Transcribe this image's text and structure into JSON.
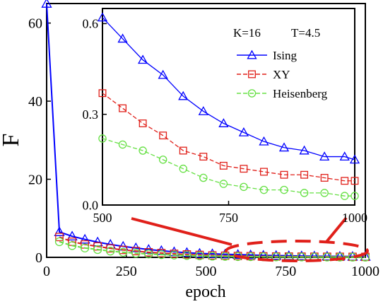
{
  "chart_data": [
    {
      "type": "line",
      "role": "main",
      "xlabel": "epoch",
      "ylabel": "F",
      "xlim": [
        0,
        1000
      ],
      "ylim": [
        0,
        65
      ],
      "xticks": [
        0,
        250,
        500,
        750,
        1000
      ],
      "xtick_labels": [
        "0",
        "250",
        "500",
        "750",
        "1000"
      ],
      "yticks": [
        0,
        20,
        40,
        60
      ],
      "ytick_labels": [
        "0",
        "20",
        "40",
        "60"
      ],
      "grid": false,
      "series": [
        {
          "name": "Ising",
          "color": "#0000ff",
          "marker": "triangle",
          "x": [
            0,
            40,
            80,
            120,
            160,
            200,
            240,
            280,
            320,
            360,
            400,
            440,
            480,
            520,
            560,
            600,
            640,
            680,
            720,
            760,
            800,
            840,
            880,
            920,
            960,
            1000
          ],
          "y": [
            65,
            6.5,
            5.4,
            4.6,
            3.9,
            3.3,
            2.8,
            2.4,
            2.0,
            1.7,
            1.4,
            1.2,
            1.0,
            0.9,
            0.8,
            0.7,
            0.6,
            0.5,
            0.45,
            0.4,
            0.35,
            0.3,
            0.27,
            0.24,
            0.22,
            0.2
          ]
        },
        {
          "name": "XY",
          "color": "#e0201a",
          "marker": "square",
          "x": [
            40,
            80,
            120,
            160,
            200,
            240,
            280,
            320,
            360,
            400,
            440,
            480,
            520,
            560,
            600,
            640,
            680,
            720,
            760,
            800,
            840,
            880,
            920,
            960,
            1000
          ],
          "y": [
            5.2,
            4.0,
            3.3,
            2.8,
            2.3,
            1.9,
            1.6,
            1.3,
            1.1,
            0.9,
            0.75,
            0.62,
            0.5,
            0.42,
            0.35,
            0.3,
            0.26,
            0.22,
            0.2,
            0.18,
            0.16,
            0.15,
            0.14,
            0.13,
            0.12
          ]
        },
        {
          "name": "Heisenberg",
          "color": "#66e044",
          "marker": "circle",
          "x": [
            40,
            80,
            120,
            160,
            200,
            240,
            280,
            320,
            360,
            400,
            440,
            480,
            520,
            560,
            600,
            640,
            680,
            720,
            760,
            800,
            840,
            880,
            920,
            960,
            1000
          ],
          "y": [
            4.0,
            3.0,
            2.4,
            2.0,
            1.6,
            1.3,
            1.05,
            0.85,
            0.7,
            0.58,
            0.47,
            0.38,
            0.3,
            0.25,
            0.2,
            0.17,
            0.14,
            0.12,
            0.1,
            0.09,
            0.08,
            0.07,
            0.06,
            0.05,
            0.05
          ]
        }
      ]
    },
    {
      "type": "line",
      "role": "inset",
      "xlim": [
        500,
        1000
      ],
      "ylim": [
        0,
        0.65
      ],
      "xticks": [
        500,
        750,
        1000
      ],
      "xtick_labels": [
        "500",
        "750",
        "1000"
      ],
      "yticks": [
        0,
        0.3,
        0.6
      ],
      "ytick_labels": [
        "0.0",
        "0.3",
        "0.6"
      ],
      "grid": false,
      "annotation": {
        "k_label": "K=16",
        "t_label": "T=4.5"
      },
      "legend": {
        "placement": "top-right",
        "entries": [
          "Ising",
          "XY",
          "Heisenberg"
        ]
      },
      "series": [
        {
          "name": "Ising",
          "color": "#0000ff",
          "marker": "triangle",
          "x": [
            500,
            540,
            580,
            620,
            660,
            700,
            740,
            780,
            820,
            860,
            900,
            940,
            980,
            1000
          ],
          "y": [
            0.62,
            0.55,
            0.48,
            0.43,
            0.36,
            0.31,
            0.27,
            0.24,
            0.21,
            0.19,
            0.18,
            0.16,
            0.16,
            0.15
          ]
        },
        {
          "name": "XY",
          "color": "#e0201a",
          "marker": "square",
          "x": [
            500,
            540,
            580,
            620,
            660,
            700,
            740,
            780,
            820,
            860,
            900,
            940,
            980,
            1000
          ],
          "y": [
            0.37,
            0.32,
            0.27,
            0.23,
            0.18,
            0.16,
            0.13,
            0.12,
            0.11,
            0.1,
            0.1,
            0.09,
            0.08,
            0.08
          ]
        },
        {
          "name": "Heisenberg",
          "color": "#66e044",
          "marker": "circle",
          "x": [
            500,
            540,
            580,
            620,
            660,
            700,
            740,
            780,
            820,
            860,
            900,
            940,
            980,
            1000
          ],
          "y": [
            0.22,
            0.2,
            0.18,
            0.15,
            0.12,
            0.09,
            0.07,
            0.06,
            0.05,
            0.05,
            0.04,
            0.04,
            0.03,
            0.03
          ]
        }
      ]
    }
  ]
}
